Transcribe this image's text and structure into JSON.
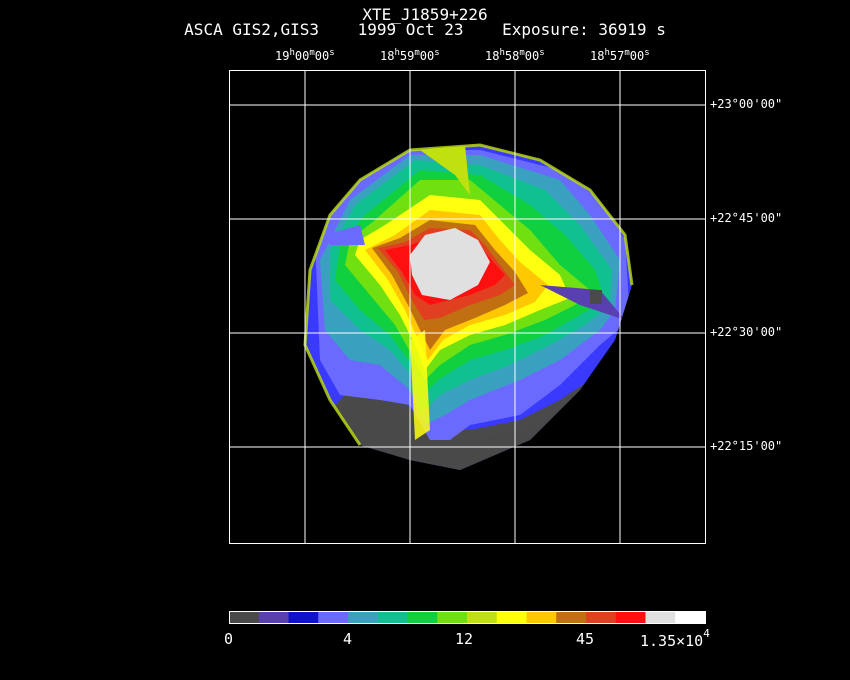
{
  "header": {
    "title": "XTE_J1859+226",
    "instrument": "ASCA GIS2,GIS3",
    "date": "1999 Oct 23",
    "exposure": "Exposure: 36919 s"
  },
  "ra_labels": [
    {
      "h": "19",
      "m": "00",
      "s": "00"
    },
    {
      "h": "18",
      "m": "59",
      "s": "00"
    },
    {
      "h": "18",
      "m": "58",
      "s": "00"
    },
    {
      "h": "18",
      "m": "57",
      "s": "00"
    }
  ],
  "dec_labels": [
    "+23°00'00\"",
    "+22°45'00\"",
    "+22°30'00\"",
    "+22°15'00\""
  ],
  "colorbar": {
    "labels": [
      "0",
      "4",
      "12",
      "45",
      "1.35×10"
    ],
    "exponent": "4",
    "colors": [
      "#4a4a4a",
      "#5a3fb0",
      "#1010d0",
      "#6a6aff",
      "#3aa0c0",
      "#10c090",
      "#10d040",
      "#70e010",
      "#c0e010",
      "#ffff10",
      "#ffc800",
      "#c07010",
      "#e04020",
      "#ff1010",
      "#e0e0e0",
      "#ffffff"
    ]
  }
}
